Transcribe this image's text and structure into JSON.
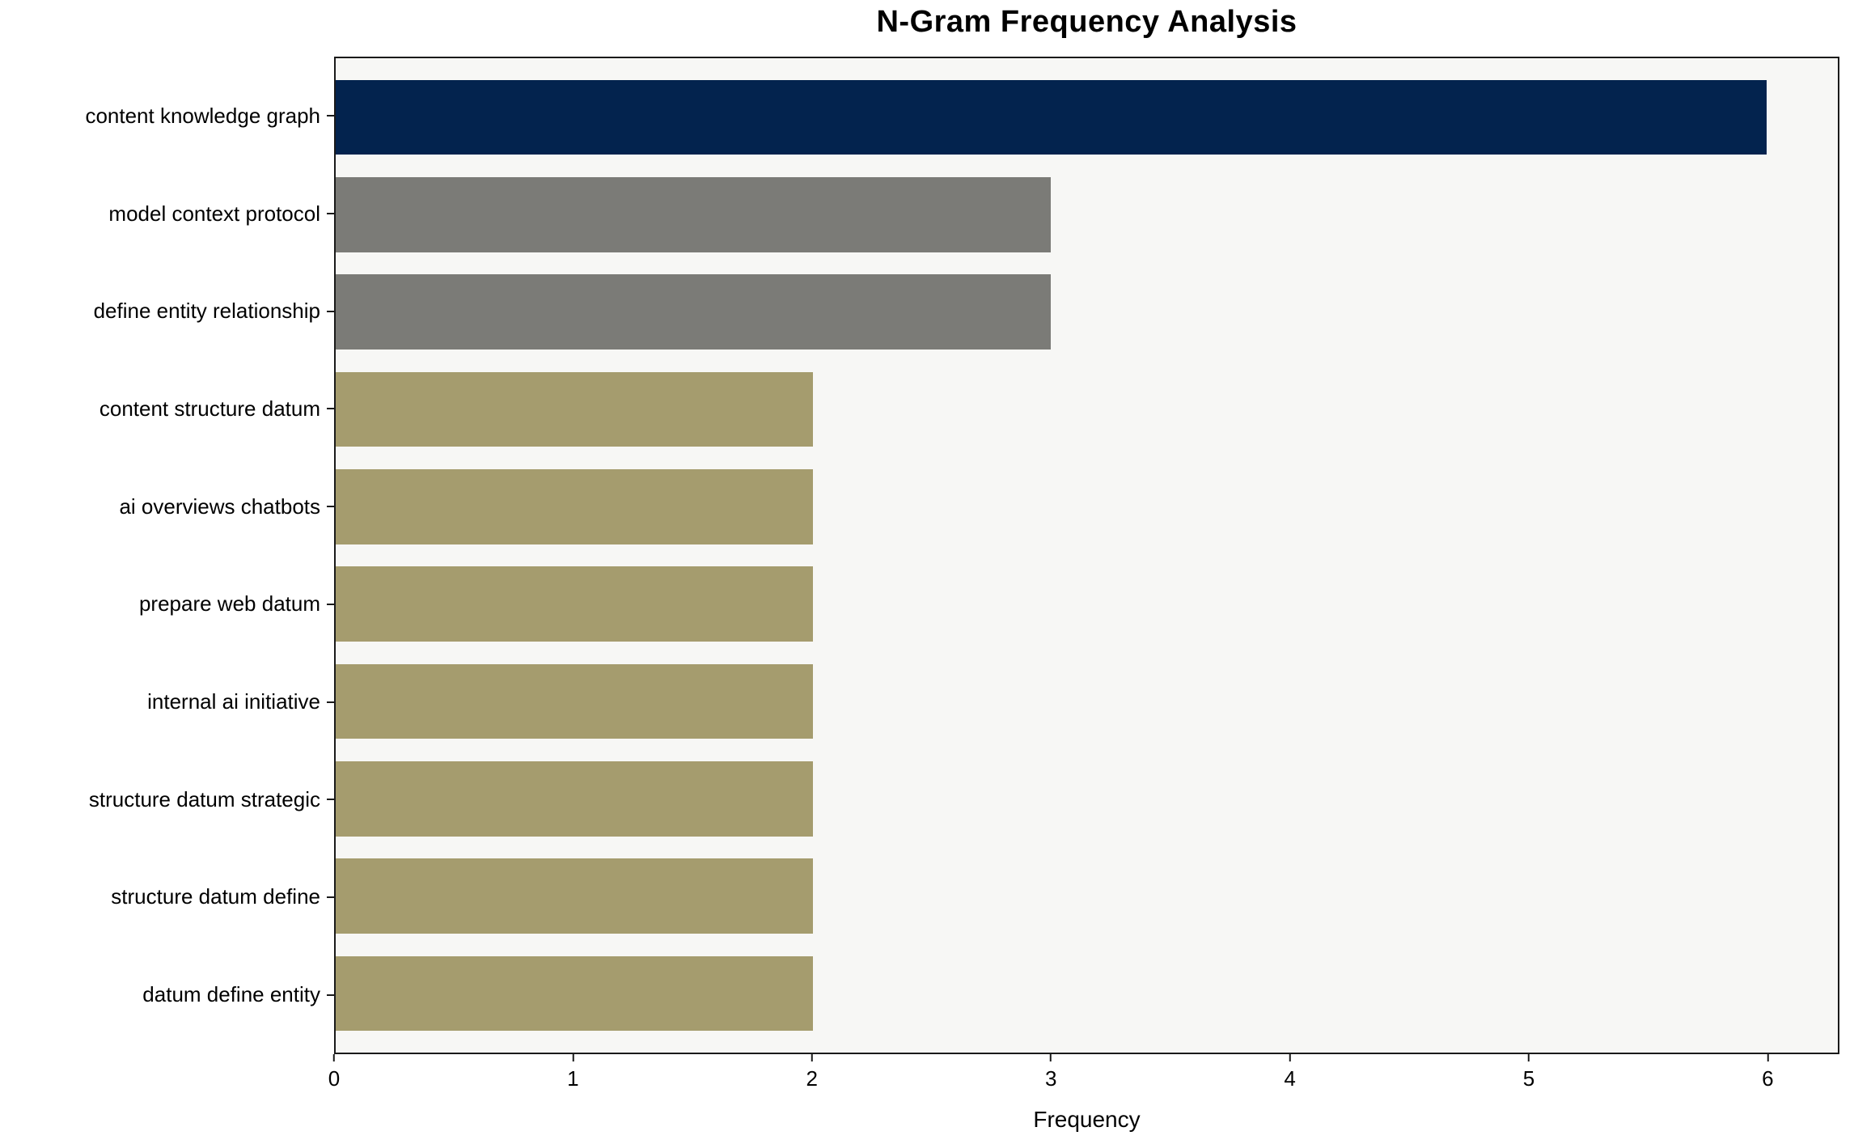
{
  "chart_data": {
    "type": "bar",
    "orientation": "horizontal",
    "title": "N-Gram Frequency Analysis",
    "xlabel": "Frequency",
    "ylabel": "",
    "categories": [
      "content knowledge graph",
      "model context protocol",
      "define entity relationship",
      "content structure datum",
      "ai overviews chatbots",
      "prepare web datum",
      "internal ai initiative",
      "structure datum strategic",
      "structure datum define",
      "datum define entity"
    ],
    "values": [
      6,
      3,
      3,
      2,
      2,
      2,
      2,
      2,
      2,
      2
    ],
    "bar_colors": [
      "#03234e",
      "#7b7b77",
      "#7b7b77",
      "#a59c6e",
      "#a59c6e",
      "#a59c6e",
      "#a59c6e",
      "#a59c6e",
      "#a59c6e",
      "#a59c6e"
    ],
    "xticks": [
      0,
      1,
      2,
      3,
      4,
      5,
      6
    ],
    "xlim": [
      0,
      6.3
    ],
    "grid": false,
    "legend": null,
    "plot_background": "#f7f7f5",
    "axis_color": "#1a1a1a"
  }
}
